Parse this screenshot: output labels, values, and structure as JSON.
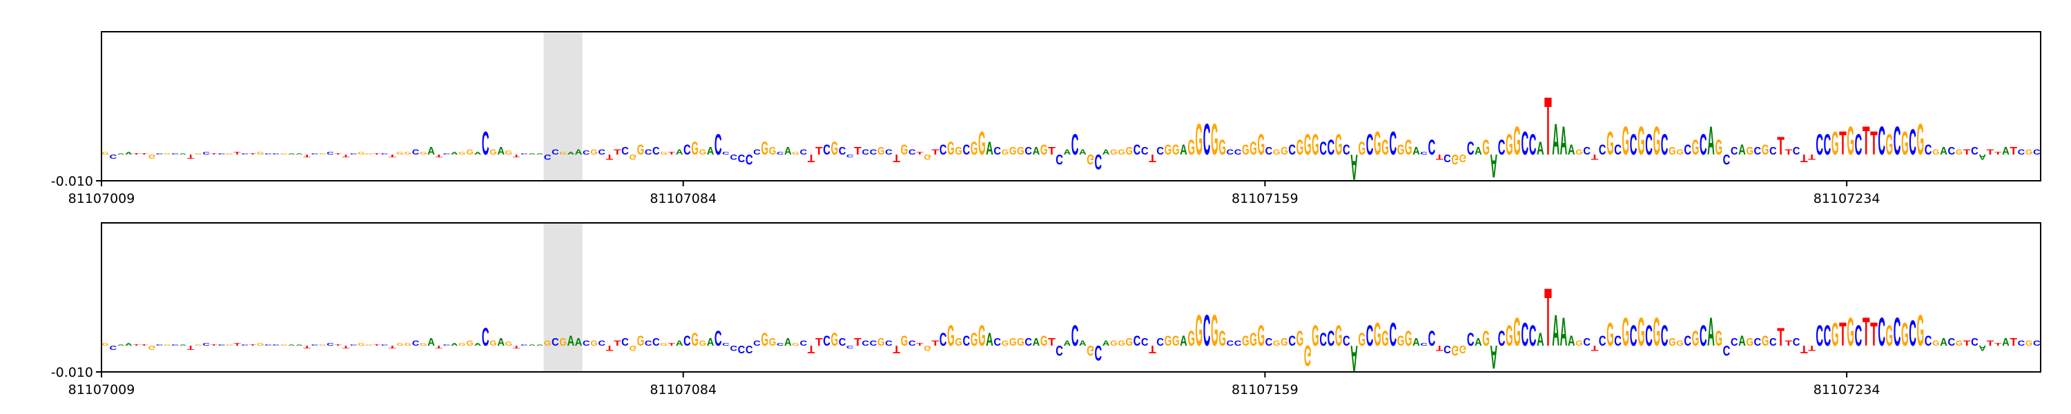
{
  "chart_data": [
    {
      "type": "logo",
      "sequence": "GCAATTGCGCATGCTCGTCTGCCGAATCGCTTCGGTCTGGCGATCAGGACGAGTCAACCGAACGCTTCGGCCGTACGGACCCCCCGGCAGCTTCGCCTCCGCTGCTGTCGGCGGACGGGCAGTCACAGCAGGGCCTCGGAGGCGGCCGGGCGGCGGGCCGCAGCGGCGGACCTCGGCAGACGGCCATAAAGCTCGCGCGCGCGGCGCAGCCAGCGCTTCTTCCGTGCTTCGCGCGCGACGTCATTATCGC",
      "values": [
        0.001,
        -0.0015,
        0.0005,
        0.001,
        0.0005,
        0.0005,
        -0.0015,
        0.0005,
        0.0005,
        0.0005,
        0.0005,
        -0.0015,
        0.0005,
        0.001,
        0.0005,
        0.0005,
        0.0005,
        0.001,
        0.0005,
        0.0005,
        0.001,
        0.0005,
        0.0005,
        0.0005,
        0.0005,
        0.0005,
        -0.001,
        0.0005,
        0.0005,
        0.001,
        0.0005,
        -0.001,
        0.0005,
        0.001,
        0.0005,
        0.0005,
        0.0005,
        -0.001,
        0.001,
        0.001,
        0.002,
        0.001,
        0.003,
        -0.001,
        0.0005,
        0.001,
        0.001,
        0.002,
        0.001,
        0.009,
        0.002,
        0.003,
        0.0015,
        -0.001,
        0.0005,
        0.0005,
        0.0005,
        -0.002,
        0.002,
        0.001,
        0.001,
        0.002,
        0.0015,
        0.002,
        0.002,
        -0.002,
        0.002,
        0.003,
        -0.002,
        0.004,
        0.002,
        0.003,
        0.001,
        0.001,
        0.002,
        0.004,
        0.005,
        0.002,
        0.003,
        0.008,
        0.001,
        -0.002,
        -0.003,
        -0.004,
        0.002,
        0.005,
        0.003,
        0.001,
        0.003,
        0.001,
        0.002,
        -0.003,
        0.003,
        0.004,
        0.005,
        0.003,
        -0.001,
        0.003,
        0.002,
        0.002,
        0.003,
        0.002,
        -0.003,
        0.004,
        0.002,
        0.001,
        -0.002,
        0.002,
        0.004,
        0.005,
        0.003,
        0.004,
        0.005,
        0.009,
        0.005,
        0.003,
        0.002,
        0.003,
        0.003,
        0.003,
        0.003,
        0.004,
        0.003,
        -0.004,
        0.002,
        0.008,
        0.002,
        -0.004,
        -0.006,
        0.002,
        0.002,
        0.002,
        0.003,
        0.004,
        0.003,
        -0.003,
        0.003,
        0.004,
        0.004,
        0.004,
        0.006,
        0.012,
        0.012,
        0.012,
        0.006,
        0.002,
        0.002,
        0.004,
        0.005,
        0.008,
        0.003,
        0.002,
        0.003,
        0.004,
        0.006,
        0.008,
        0.008,
        0.005,
        0.006,
        0.008,
        0.004,
        -0.01,
        0.005,
        0.008,
        0.009,
        0.006,
        0.009,
        0.004,
        0.006,
        0.003,
        0.001,
        0.006,
        -0.002,
        -0.003,
        -0.004,
        -0.003,
        0.005,
        0.003,
        0.006,
        -0.009,
        0.006,
        0.008,
        0.011,
        0.009,
        0.008,
        0.005,
        0.0225,
        0.012,
        0.011,
        0.004,
        0.002,
        0.003,
        -0.002,
        0.004,
        0.009,
        0.004,
        0.011,
        0.008,
        0.011,
        0.008,
        0.011,
        0.008,
        0.003,
        0.002,
        0.004,
        0.006,
        0.008,
        0.011,
        0.006,
        -0.004,
        0.003,
        0.004,
        0.003,
        0.003,
        0.004,
        0.003,
        0.007,
        0.002,
        0.003,
        -0.003,
        -0.002,
        0.008,
        0.008,
        0.009,
        0.009,
        0.011,
        0.008,
        0.011,
        0.009,
        0.011,
        0.008,
        0.011,
        0.009,
        0.01,
        0.012,
        0.004,
        0.002,
        0.003,
        0.003,
        0.002,
        0.002,
        0.003,
        -0.002,
        0.002,
        0.001,
        0.003,
        0.003,
        0.002,
        0.002,
        0.002
      ],
      "colors": {
        "A": "#008000",
        "C": "#0000ff",
        "G": "#ffa500",
        "T": "#ff0000"
      },
      "highlight": [
        81107066,
        81107071
      ],
      "xlim": [
        81107009,
        81107259
      ],
      "xticks": [
        81107009,
        81107084,
        81107159,
        81107234
      ],
      "ylim": [
        -0.01,
        0.0465
      ],
      "yticks": [
        {
          "value": -0.01,
          "label": "-0.010"
        }
      ]
    },
    {
      "type": "logo",
      "sequence": "GCAATTGCGCATGCTCGTCTGCCGAATCGCTTCGGTCTGGCGATCAGGACGAGTCAAGCGAACGCTTCGGCCGTACGGACCCCCCGGCAGCTTCGCCTCCGCTGCTGTCGGCGGACGGGCAGTCACAGCAGGGCCTCGGAGGCGGCCGGGCGGCGGGCCGCAGCGGCGGACCTCGGCAGACGGCCATAAAGCTCGCGCGCGCGGCGCAGCCAGCGCTTCTTCCGTGCTTCGCGCGCGACGTCATTATCGC",
      "values": [
        0.001,
        -0.0015,
        0.0005,
        0.001,
        0.0005,
        0.0005,
        -0.0015,
        0.0005,
        0.0005,
        0.0005,
        0.0005,
        -0.0015,
        0.0005,
        0.001,
        0.0005,
        0.0005,
        0.0005,
        0.001,
        0.0005,
        0.0005,
        0.001,
        0.0005,
        0.0005,
        0.0005,
        0.0005,
        0.0005,
        -0.001,
        0.0005,
        0.0005,
        0.001,
        0.0005,
        -0.001,
        0.0005,
        0.001,
        0.0005,
        0.0005,
        0.0005,
        -0.001,
        0.001,
        0.001,
        0.002,
        0.001,
        0.003,
        -0.001,
        0.0005,
        0.001,
        0.001,
        0.002,
        0.001,
        0.007,
        0.002,
        0.003,
        0.0015,
        -0.001,
        0.0005,
        0.0005,
        0.0005,
        0.002,
        0.003,
        0.003,
        0.004,
        0.003,
        0.002,
        0.002,
        0.002,
        -0.002,
        0.002,
        0.003,
        -0.002,
        0.004,
        0.002,
        0.003,
        0.001,
        0.001,
        0.002,
        0.004,
        0.005,
        0.002,
        0.003,
        0.006,
        0.001,
        -0.002,
        -0.003,
        -0.003,
        0.002,
        0.005,
        0.003,
        0.001,
        0.003,
        0.001,
        0.002,
        -0.003,
        0.003,
        0.004,
        0.005,
        0.003,
        -0.001,
        0.003,
        0.002,
        0.002,
        0.003,
        0.002,
        -0.003,
        0.004,
        0.002,
        0.001,
        -0.002,
        0.002,
        0.005,
        0.008,
        0.003,
        0.004,
        0.005,
        0.008,
        0.005,
        0.003,
        0.002,
        0.003,
        0.003,
        0.003,
        0.003,
        0.004,
        0.003,
        -0.004,
        0.002,
        0.008,
        0.002,
        -0.004,
        -0.006,
        0.002,
        0.002,
        0.002,
        0.003,
        0.004,
        0.003,
        -0.003,
        0.003,
        0.004,
        0.004,
        0.004,
        0.006,
        0.012,
        0.012,
        0.012,
        0.006,
        0.002,
        0.002,
        0.004,
        0.005,
        0.008,
        0.003,
        0.002,
        0.003,
        0.004,
        0.006,
        -0.008,
        0.008,
        0.005,
        0.006,
        0.008,
        0.004,
        -0.01,
        0.005,
        0.008,
        0.009,
        0.006,
        0.009,
        0.004,
        0.006,
        0.003,
        0.001,
        0.006,
        -0.002,
        -0.003,
        -0.004,
        -0.003,
        0.005,
        0.003,
        0.006,
        -0.009,
        0.006,
        0.008,
        0.011,
        0.009,
        0.008,
        0.005,
        0.0225,
        0.012,
        0.011,
        0.004,
        0.002,
        0.003,
        -0.002,
        0.004,
        0.009,
        0.004,
        0.011,
        0.008,
        0.011,
        0.008,
        0.011,
        0.008,
        0.003,
        0.002,
        0.004,
        0.006,
        0.008,
        0.011,
        0.006,
        -0.004,
        0.003,
        0.004,
        0.003,
        0.003,
        0.004,
        0.003,
        0.007,
        0.002,
        0.003,
        -0.003,
        -0.002,
        0.008,
        0.008,
        0.009,
        0.009,
        0.011,
        0.008,
        0.011,
        0.009,
        0.011,
        0.008,
        0.011,
        0.009,
        0.01,
        0.012,
        0.004,
        0.002,
        0.003,
        0.003,
        0.002,
        0.002,
        0.003,
        -0.002,
        0.002,
        0.001,
        0.003,
        0.003,
        0.002,
        0.002,
        0.002
      ],
      "colors": {
        "A": "#008000",
        "C": "#0000ff",
        "G": "#ffa500",
        "T": "#ff0000"
      },
      "highlight": [
        81107066,
        81107071
      ],
      "xlim": [
        81107009,
        81107259
      ],
      "xticks": [
        81107009,
        81107084,
        81107159,
        81107234
      ],
      "ylim": [
        -0.01,
        0.0465
      ],
      "yticks": [
        {
          "value": -0.01,
          "label": "-0.010"
        }
      ]
    }
  ]
}
